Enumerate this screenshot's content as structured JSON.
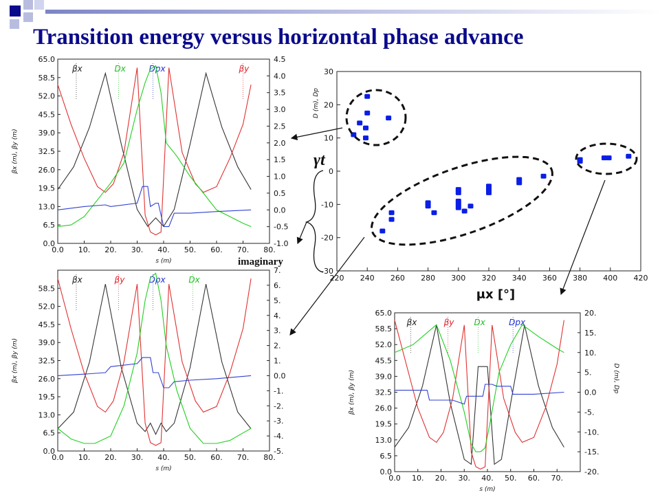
{
  "slide": {
    "title": "Transition energy versus horizontal phase advance",
    "colors": {
      "title": "#0a0a8c",
      "accent_square": "#0a0a8c",
      "accent_light": "#b8bde0"
    }
  },
  "annotations": {
    "gamma_t": "γt",
    "imaginary": "imaginary"
  },
  "chart_data": [
    {
      "id": "gamma_t_vs_mux",
      "type": "scatter",
      "xlabel": "μx [°]",
      "ylim": [
        -30,
        30
      ],
      "xlim": [
        220,
        420
      ],
      "xticks": [
        220,
        240,
        260,
        280,
        300,
        320,
        340,
        360,
        380,
        400,
        420
      ],
      "yticks": [
        -30,
        -20,
        -10,
        0,
        10,
        20,
        30
      ],
      "secondary_label": "D (m), Dp",
      "color": "#0a1ee6",
      "series": [
        {
          "points": [
            [
              231,
              11
            ],
            [
              235,
              14.5
            ],
            [
              239,
              10
            ],
            [
              239,
              13
            ],
            [
              240,
              17.5
            ],
            [
              240,
              22.5
            ],
            [
              254,
              16
            ],
            [
              250,
              -18
            ],
            [
              256,
              -12.5
            ],
            [
              256,
              -14.5
            ],
            [
              280,
              -9.5
            ],
            [
              280,
              -10.5
            ],
            [
              284,
              -12.5
            ],
            [
              300,
              -5.5
            ],
            [
              300,
              -6.5
            ],
            [
              300,
              -9
            ],
            [
              300,
              -10
            ],
            [
              300,
              -11
            ],
            [
              304,
              -12
            ],
            [
              308,
              -10.5
            ],
            [
              320,
              -4.5
            ],
            [
              320,
              -5.5
            ],
            [
              320,
              -6.5
            ],
            [
              340,
              -2.5
            ],
            [
              340,
              -3.5
            ],
            [
              356,
              -1.5
            ],
            [
              380,
              3
            ],
            [
              380,
              3.5
            ],
            [
              396,
              4
            ],
            [
              399,
              4
            ],
            [
              412,
              4.5
            ]
          ]
        }
      ],
      "groups": [
        "positive γt",
        "imaginary γt",
        "positive γt at high phase advance"
      ]
    },
    {
      "id": "optics_top_left",
      "type": "line",
      "xlabel": "s (m)",
      "ylabel": "βx (m), βy (m)",
      "xlim": [
        0,
        80
      ],
      "ylim": [
        0,
        65
      ],
      "xticks": [
        0,
        10,
        20,
        30,
        40,
        50,
        60,
        70,
        80
      ],
      "yticks": [
        0,
        6.5,
        13,
        19.5,
        26,
        32.5,
        39,
        45.5,
        52,
        58.5,
        65
      ],
      "ytick_labels": [
        "0.0",
        "6.5",
        "13.0",
        "19.5",
        "26.0",
        "32.5",
        "39.0",
        "45.5",
        "52.0",
        "58.5",
        "65.0"
      ],
      "xtick_labels": [
        "0.0",
        "10.",
        "20.",
        "30.",
        "40.",
        "50.",
        "60.",
        "70.",
        "80."
      ],
      "y2lim": [
        -1,
        4.5
      ],
      "y2ticks": [
        -1,
        -0.5,
        0,
        0.5,
        1,
        1.5,
        2,
        2.5,
        3,
        3.5,
        4,
        4.5
      ],
      "y2tick_labels": [
        "-1.0",
        "-0.5",
        "0.0",
        "0.5",
        "1.0",
        "1.5",
        "2.0",
        "2.5",
        "3.0",
        "3.5",
        "4.0",
        "4.5"
      ],
      "legend": [
        {
          "label": "βx",
          "color": "#222222",
          "s": 7
        },
        {
          "label": "Dx",
          "color": "#1fbf1f",
          "s": 23
        },
        {
          "label": "Dpx",
          "color": "#1f2fd0",
          "s": 36
        },
        {
          "label": "βy",
          "color": "#e0202a",
          "s": 70
        }
      ],
      "series": [
        {
          "name": "βx",
          "color": "#333333",
          "axis": "left",
          "x": [
            0,
            6,
            12,
            18,
            24,
            30,
            34,
            37,
            40,
            44,
            50,
            56,
            62,
            68,
            73
          ],
          "y": [
            19,
            27,
            41,
            60,
            35,
            12,
            6,
            9,
            6,
            12,
            35,
            60,
            41,
            27,
            19
          ]
        },
        {
          "name": "βy",
          "color": "#e03030",
          "axis": "left",
          "x": [
            0,
            5,
            10,
            15,
            18,
            21,
            25,
            30,
            33,
            35,
            37,
            39,
            42,
            47,
            52,
            55,
            60,
            65,
            70,
            73
          ],
          "y": [
            56,
            42,
            30,
            20,
            18,
            21,
            32,
            62,
            10,
            4,
            3,
            4,
            62,
            32,
            21,
            18,
            20,
            30,
            42,
            56
          ]
        },
        {
          "name": "Dx",
          "color": "#1fd01f",
          "axis": "right",
          "x": [
            0,
            5,
            10,
            15,
            20,
            25,
            30,
            33,
            35,
            37,
            39,
            41,
            45,
            50,
            55,
            60,
            65,
            70,
            73
          ],
          "y": [
            -0.5,
            -0.45,
            -0.2,
            0.3,
            0.8,
            1.4,
            3.0,
            3.8,
            4.2,
            4.3,
            3.5,
            2.0,
            1.6,
            1.0,
            0.5,
            0.0,
            -0.2,
            -0.4,
            -0.5
          ]
        },
        {
          "name": "Dpx",
          "color": "#3040d0",
          "axis": "right",
          "x": [
            0,
            10,
            18,
            20,
            30,
            32,
            34,
            35,
            37,
            38,
            40,
            42,
            44,
            46,
            50,
            60,
            73
          ],
          "y": [
            0,
            0.1,
            0.15,
            0.1,
            0.2,
            0.7,
            0.7,
            0.1,
            0.2,
            0.2,
            -0.5,
            -0.5,
            -0.1,
            -0.1,
            -0.1,
            -0.05,
            0
          ]
        }
      ]
    },
    {
      "id": "optics_bottom_left",
      "type": "line",
      "xlabel": "s (m)",
      "ylabel": "βx (m), βy (m)",
      "xlim": [
        0,
        80
      ],
      "ylim": [
        0,
        65
      ],
      "xticks": [
        0,
        10,
        20,
        30,
        40,
        50,
        60,
        70,
        80
      ],
      "yticks": [
        0,
        6.5,
        13,
        19.5,
        26,
        32.5,
        39,
        45.5,
        52,
        58.5
      ],
      "ytick_labels": [
        "0.0",
        "6.5",
        "13.0",
        "19.5",
        "26.0",
        "32.5",
        "39.0",
        "45.5",
        "52.0",
        "58.5"
      ],
      "xtick_labels": [
        "0.0",
        "10.",
        "20.",
        "30.",
        "40.",
        "50.",
        "60.",
        "70.",
        "80."
      ],
      "y2lim": [
        -5,
        7
      ],
      "y2ticks": [
        -5,
        -4,
        -3,
        -2,
        -1,
        0,
        1,
        2,
        3,
        4,
        5,
        6,
        7
      ],
      "y2tick_labels": [
        "-5.",
        "-4.",
        "-3.",
        "-2.",
        "-1.",
        "0.0",
        "1.",
        "2.",
        "3.",
        "4.",
        "5.",
        "6.",
        "7."
      ],
      "legend": [
        {
          "label": "βx",
          "color": "#222222",
          "s": 7
        },
        {
          "label": "βy",
          "color": "#e0202a",
          "s": 23
        },
        {
          "label": "Dpx",
          "color": "#1f2fd0",
          "s": 36
        },
        {
          "label": "Dx",
          "color": "#1fbf1f",
          "s": 51
        }
      ],
      "series": [
        {
          "name": "βx",
          "color": "#333333",
          "axis": "left",
          "x": [
            0,
            6,
            12,
            18,
            24,
            30,
            33,
            35,
            37,
            39,
            41,
            44,
            50,
            56,
            62,
            68,
            73
          ],
          "y": [
            8,
            14,
            32,
            60,
            30,
            10,
            7,
            10,
            6,
            10,
            7,
            10,
            30,
            60,
            32,
            14,
            8
          ]
        },
        {
          "name": "βy",
          "color": "#e03030",
          "axis": "left",
          "x": [
            0,
            5,
            10,
            15,
            18,
            21,
            25,
            30,
            33,
            35,
            37,
            39,
            42,
            47,
            52,
            55,
            60,
            65,
            70,
            73
          ],
          "y": [
            62,
            44,
            28,
            16,
            14,
            18,
            32,
            60,
            10,
            3,
            2,
            3,
            60,
            32,
            18,
            14,
            16,
            28,
            44,
            62
          ]
        },
        {
          "name": "Dx",
          "color": "#1fd01f",
          "axis": "right",
          "x": [
            0,
            5,
            10,
            14,
            20,
            25,
            30,
            33,
            35,
            37,
            39,
            41,
            45,
            50,
            55,
            60,
            65,
            70,
            73
          ],
          "y": [
            -3.5,
            -4.2,
            -4.5,
            -4.5,
            -4.0,
            -2.0,
            1.5,
            5.0,
            6.5,
            6.8,
            5.0,
            2.0,
            -1.0,
            -3.5,
            -4.5,
            -4.5,
            -4.3,
            -3.8,
            -3.5
          ]
        },
        {
          "name": "Dpx",
          "color": "#3040d0",
          "axis": "right",
          "x": [
            0,
            10,
            18,
            20,
            30,
            32,
            35,
            36,
            38,
            40,
            42,
            44,
            50,
            60,
            73
          ],
          "y": [
            0,
            0.1,
            0.2,
            0.6,
            0.8,
            1.2,
            1.2,
            0.2,
            0.2,
            -0.8,
            -0.8,
            -0.4,
            -0.3,
            -0.2,
            0
          ]
        }
      ]
    },
    {
      "id": "optics_bottom_right",
      "type": "line",
      "xlabel": "s (m)",
      "ylabel": "βx (m), βy (m)",
      "xlim": [
        0,
        80
      ],
      "ylim": [
        0,
        65
      ],
      "xticks": [
        0,
        10,
        20,
        30,
        40,
        50,
        60,
        70
      ],
      "yticks": [
        0,
        6.5,
        13,
        19.5,
        26,
        32.5,
        39,
        45.5,
        52,
        58.5,
        65
      ],
      "ytick_labels": [
        "0.0",
        "6.5",
        "13.0",
        "19.5",
        "26.0",
        "32.5",
        "39.0",
        "45.5",
        "52.0",
        "58.5",
        "65.0"
      ],
      "xtick_labels": [
        "0.0",
        "10.",
        "20.",
        "30.",
        "40.",
        "50.",
        "60.",
        "70."
      ],
      "y2lim": [
        -20,
        20
      ],
      "y2ticks": [
        -20,
        -15,
        -10,
        -5,
        0,
        5,
        10,
        15,
        20
      ],
      "y2tick_labels": [
        "-20.",
        "-15.",
        "-10.",
        "-5.",
        "0.0",
        "5.",
        "10.",
        "15.",
        "20."
      ],
      "secondary_label": "D (m), Dp",
      "legend": [
        {
          "label": "βx",
          "color": "#222222",
          "s": 7
        },
        {
          "label": "βy",
          "color": "#e0202a",
          "s": 23
        },
        {
          "label": "Dx",
          "color": "#1fbf1f",
          "s": 36
        },
        {
          "label": "Dpx",
          "color": "#1f2fd0",
          "s": 51
        }
      ],
      "series": [
        {
          "name": "βx",
          "color": "#333333",
          "axis": "left",
          "x": [
            0,
            6,
            12,
            18,
            24,
            30,
            33,
            36,
            40,
            43,
            46,
            50,
            56,
            62,
            68,
            73
          ],
          "y": [
            10,
            18,
            35,
            60,
            28,
            5,
            3,
            43,
            43,
            3,
            5,
            28,
            60,
            35,
            18,
            10
          ]
        },
        {
          "name": "βy",
          "color": "#e03030",
          "axis": "left",
          "x": [
            0,
            5,
            10,
            15,
            18,
            21,
            25,
            30,
            33,
            35,
            37,
            39,
            42,
            47,
            52,
            55,
            60,
            65,
            70,
            73
          ],
          "y": [
            62,
            44,
            26,
            14,
            12,
            16,
            30,
            60,
            8,
            2,
            1,
            2,
            60,
            30,
            16,
            12,
            14,
            26,
            44,
            62
          ]
        },
        {
          "name": "Dx",
          "color": "#1fd01f",
          "axis": "right",
          "x": [
            0,
            8,
            18,
            24,
            30,
            33,
            35,
            37,
            39,
            41,
            45,
            50,
            55,
            62,
            70,
            73
          ],
          "y": [
            10,
            12,
            17,
            8,
            -5,
            -13,
            -15,
            -15,
            -14,
            -8,
            5,
            12,
            17,
            14,
            11,
            10
          ]
        },
        {
          "name": "Dpx",
          "color": "#3040d0",
          "axis": "right",
          "x": [
            0,
            10,
            14,
            15,
            25,
            30,
            31,
            38,
            39,
            42,
            44,
            50,
            51,
            60,
            73
          ],
          "y": [
            0.5,
            0.5,
            0.5,
            -2,
            -2,
            -3,
            -1,
            -1,
            2,
            2,
            1.5,
            1.5,
            -0.5,
            -0.5,
            0
          ]
        }
      ]
    }
  ]
}
